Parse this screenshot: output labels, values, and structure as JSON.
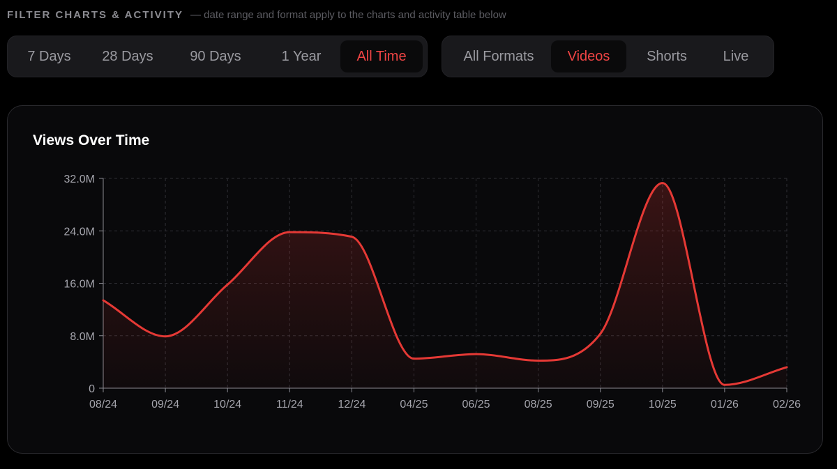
{
  "filters": {
    "title": "FILTER CHARTS & ACTIVITY",
    "subtitle": "— date range and format apply to the charts and activity table below",
    "date_ranges": [
      {
        "label": "7 Days",
        "active": false
      },
      {
        "label": "28 Days",
        "active": false
      },
      {
        "label": "90 Days",
        "active": false
      },
      {
        "label": "1 Year",
        "active": false
      },
      {
        "label": "All Time",
        "active": true
      }
    ],
    "formats": [
      {
        "label": "All Formats",
        "active": false
      },
      {
        "label": "Videos",
        "active": true
      },
      {
        "label": "Shorts",
        "active": false
      },
      {
        "label": "Live",
        "active": false
      }
    ]
  },
  "colors": {
    "accent": "#ef4444",
    "line": "#e53935",
    "card_bg": "#09090b",
    "grid": "#2f2f34"
  },
  "chart_data": {
    "type": "area",
    "title": "Views Over Time",
    "categories": [
      "08/24",
      "09/24",
      "10/24",
      "11/24",
      "12/24",
      "04/25",
      "06/25",
      "08/25",
      "09/25",
      "10/25",
      "01/26",
      "02/26"
    ],
    "series": [
      {
        "values": [
          13.4,
          7.9,
          15.8,
          23.8,
          23.1,
          4.5,
          5.2,
          4.2,
          8.3,
          31.3,
          0.5,
          3.2
        ]
      }
    ],
    "y_ticks": [
      "0",
      "8.0M",
      "16.0M",
      "24.0M",
      "32.0M"
    ],
    "ylim": [
      0,
      32
    ],
    "y_unit": "M",
    "grid": true,
    "xlabel": "",
    "ylabel": ""
  }
}
